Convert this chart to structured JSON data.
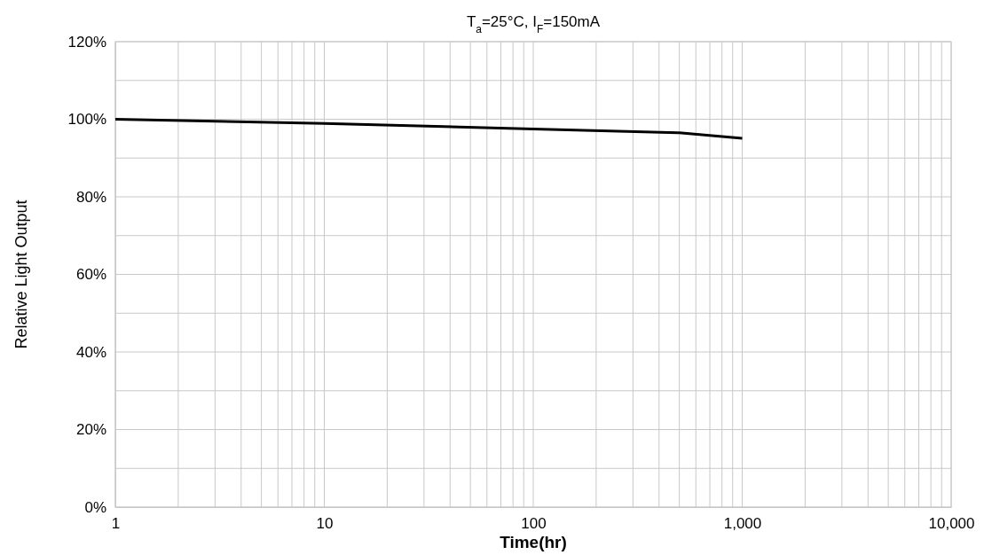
{
  "chart_data": {
    "type": "line",
    "title": "T$_{a}$=25°C, I$_{F}$=150mA",
    "xlabel": "Time(hr)",
    "ylabel": "Relative Light Output",
    "x": [
      1,
      10,
      100,
      500,
      1000
    ],
    "series": [
      {
        "color": "#000000",
        "values": [
          100,
          98.9,
          97.5,
          96.5,
          95.1
        ]
      }
    ],
    "log": "x",
    "grid": true,
    "marker": "none",
    "line_style": "solid",
    "xlim": [
      1,
      10000
    ],
    "xticks": [
      1,
      {
        "value": 2,
        "label": null
      },
      {
        "value": 3,
        "label": null
      },
      {
        "value": 4,
        "label": null
      },
      {
        "value": 5,
        "label": null
      },
      {
        "value": 6,
        "label": null
      },
      {
        "value": 7,
        "label": null
      },
      {
        "value": 8,
        "label": null
      },
      {
        "value": 9,
        "label": null
      },
      10,
      {
        "value": 20,
        "label": null
      },
      {
        "value": 30,
        "label": null
      },
      {
        "value": 40,
        "label": null
      },
      {
        "value": 50,
        "label": null
      },
      {
        "value": 60,
        "label": null
      },
      {
        "value": 70,
        "label": null
      },
      {
        "value": 80,
        "label": null
      },
      {
        "value": 90,
        "label": null
      },
      100,
      {
        "value": 200,
        "label": null
      },
      {
        "value": 300,
        "label": null
      },
      {
        "value": 400,
        "label": null
      },
      {
        "value": 500,
        "label": null
      },
      {
        "value": 600,
        "label": null
      },
      {
        "value": 700,
        "label": null
      },
      {
        "value": 800,
        "label": null
      },
      {
        "value": 900,
        "label": null
      },
      {
        "value": 1000,
        "label": "1,000"
      },
      {
        "value": 2000,
        "label": null
      },
      {
        "value": 3000,
        "label": null
      },
      {
        "value": 4000,
        "label": null
      },
      {
        "value": 5000,
        "label": null
      },
      {
        "value": 6000,
        "label": null
      },
      {
        "value": 7000,
        "label": null
      },
      {
        "value": 8000,
        "label": null
      },
      {
        "value": 9000,
        "label": null
      },
      {
        "value": 10000,
        "label": "10,000"
      }
    ],
    "ylim": [
      0,
      120
    ],
    "yticks": [
      {
        "value": 0,
        "label": "0%"
      },
      {
        "value": 10,
        "label": null
      },
      {
        "value": 20,
        "label": "20%"
      },
      {
        "value": 30,
        "label": null
      },
      {
        "value": 40,
        "label": "40%"
      },
      {
        "value": 50,
        "label": null
      },
      {
        "value": 60,
        "label": "60%"
      },
      {
        "value": 70,
        "label": null
      },
      {
        "value": 80,
        "label": "80%"
      },
      {
        "value": 90,
        "label": null
      },
      {
        "value": 100,
        "label": "100%"
      },
      {
        "value": 110,
        "label": null
      },
      {
        "value": 120,
        "label": "120%"
      }
    ]
  }
}
